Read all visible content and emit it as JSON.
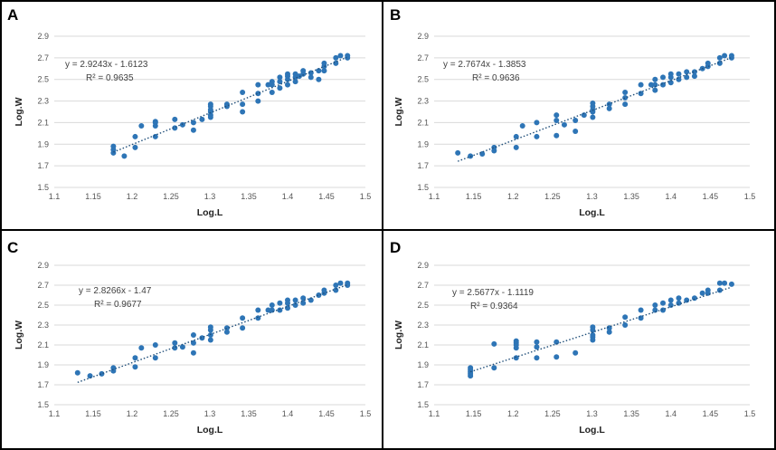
{
  "figure": {
    "panels": [
      "A",
      "B",
      "C",
      "D"
    ]
  },
  "chart_data": [
    {
      "panel": "A",
      "type": "scatter",
      "xlabel": "Log.L",
      "ylabel": "Log.W",
      "xlim": [
        1.1,
        1.5
      ],
      "ylim": [
        1.5,
        2.9
      ],
      "xticks": [
        "1.1",
        "1.15",
        "1.2",
        "1.25",
        "1.3",
        "1.35",
        "1.4",
        "1.45",
        "1.5"
      ],
      "yticks": [
        "1.5",
        "1.7",
        "1.9",
        "2.1",
        "2.3",
        "2.5",
        "2.7",
        "2.9"
      ],
      "grid": "horizontal",
      "equation": "y = 2.9243x - 1.6123",
      "r_squared": "R² = 0.9635",
      "trendline": {
        "slope": 2.9243,
        "intercept": -1.6123,
        "x_range": [
          1.176,
          1.476
        ]
      },
      "x": [
        1.176,
        1.176,
        1.176,
        1.19,
        1.204,
        1.204,
        1.23,
        1.23,
        1.23,
        1.255,
        1.255,
        1.279,
        1.279,
        1.301,
        1.301,
        1.301,
        1.301,
        1.301,
        1.301,
        1.322,
        1.322,
        1.342,
        1.342,
        1.342,
        1.362,
        1.362,
        1.362,
        1.375,
        1.38,
        1.38,
        1.38,
        1.39,
        1.39,
        1.39,
        1.4,
        1.4,
        1.4,
        1.4,
        1.41,
        1.41,
        1.41,
        1.415,
        1.42,
        1.42,
        1.43,
        1.43,
        1.44,
        1.44,
        1.447,
        1.447,
        1.447,
        1.462,
        1.462,
        1.468,
        1.477,
        1.477,
        1.23,
        1.265,
        1.212,
        1.29
      ],
      "y": [
        1.82,
        1.85,
        1.88,
        1.79,
        1.87,
        1.97,
        1.97,
        2.07,
        2.11,
        2.05,
        2.13,
        2.03,
        2.1,
        2.15,
        2.17,
        2.2,
        2.22,
        2.25,
        2.27,
        2.25,
        2.27,
        2.2,
        2.27,
        2.38,
        2.3,
        2.37,
        2.45,
        2.45,
        2.38,
        2.45,
        2.48,
        2.42,
        2.48,
        2.52,
        2.45,
        2.5,
        2.53,
        2.55,
        2.48,
        2.52,
        2.55,
        2.53,
        2.55,
        2.58,
        2.52,
        2.56,
        2.5,
        2.58,
        2.58,
        2.62,
        2.65,
        2.65,
        2.7,
        2.72,
        2.7,
        2.72,
        2.1,
        2.08,
        2.07,
        2.13
      ]
    },
    {
      "panel": "B",
      "type": "scatter",
      "xlabel": "Log.L",
      "ylabel": "Log.W",
      "xlim": [
        1.1,
        1.5
      ],
      "ylim": [
        1.5,
        2.9
      ],
      "xticks": [
        "1.1",
        "1.15",
        "1.2",
        "1.25",
        "1.3",
        "1.35",
        "1.4",
        "1.45",
        "1.5"
      ],
      "yticks": [
        "1.5",
        "1.7",
        "1.9",
        "2.1",
        "2.3",
        "2.5",
        "2.7",
        "2.9"
      ],
      "grid": "horizontal",
      "equation": "y = 2.7674x - 1.3853",
      "r_squared": "R² = 0.9636",
      "trendline": {
        "slope": 2.7674,
        "intercept": -1.3853,
        "x_range": [
          1.13,
          1.476
        ]
      },
      "x": [
        1.13,
        1.146,
        1.161,
        1.176,
        1.176,
        1.204,
        1.204,
        1.212,
        1.23,
        1.23,
        1.255,
        1.255,
        1.255,
        1.265,
        1.279,
        1.279,
        1.29,
        1.301,
        1.301,
        1.301,
        1.301,
        1.301,
        1.322,
        1.322,
        1.342,
        1.342,
        1.342,
        1.362,
        1.362,
        1.375,
        1.38,
        1.38,
        1.38,
        1.39,
        1.39,
        1.4,
        1.4,
        1.4,
        1.41,
        1.41,
        1.42,
        1.42,
        1.43,
        1.43,
        1.44,
        1.447,
        1.447,
        1.462,
        1.462,
        1.468,
        1.477,
        1.477
      ],
      "y": [
        1.82,
        1.79,
        1.81,
        1.84,
        1.87,
        1.87,
        1.97,
        2.07,
        1.97,
        2.1,
        1.98,
        2.12,
        2.17,
        2.08,
        2.02,
        2.12,
        2.17,
        2.15,
        2.2,
        2.22,
        2.25,
        2.28,
        2.23,
        2.27,
        2.27,
        2.33,
        2.38,
        2.37,
        2.45,
        2.45,
        2.4,
        2.45,
        2.5,
        2.45,
        2.52,
        2.47,
        2.52,
        2.55,
        2.5,
        2.55,
        2.52,
        2.57,
        2.53,
        2.57,
        2.6,
        2.62,
        2.65,
        2.65,
        2.7,
        2.72,
        2.7,
        2.72
      ]
    },
    {
      "panel": "C",
      "type": "scatter",
      "xlabel": "Log.L",
      "ylabel": "Log.W",
      "xlim": [
        1.1,
        1.5
      ],
      "ylim": [
        1.5,
        2.9
      ],
      "xticks": [
        "1.1",
        "1.15",
        "1.2",
        "1.25",
        "1.3",
        "1.35",
        "1.4",
        "1.45",
        "1.5"
      ],
      "yticks": [
        "1.5",
        "1.7",
        "1.9",
        "2.1",
        "2.3",
        "2.5",
        "2.7",
        "2.9"
      ],
      "grid": "horizontal",
      "equation": "y = 2.8266x - 1.47",
      "r_squared": "R² = 0.9677",
      "trendline": {
        "slope": 2.8266,
        "intercept": -1.47,
        "x_range": [
          1.13,
          1.476
        ]
      },
      "x": [
        1.13,
        1.146,
        1.161,
        1.176,
        1.176,
        1.204,
        1.204,
        1.212,
        1.23,
        1.23,
        1.255,
        1.255,
        1.265,
        1.279,
        1.279,
        1.279,
        1.29,
        1.301,
        1.301,
        1.301,
        1.301,
        1.322,
        1.322,
        1.342,
        1.342,
        1.362,
        1.362,
        1.375,
        1.38,
        1.38,
        1.39,
        1.39,
        1.4,
        1.4,
        1.4,
        1.41,
        1.41,
        1.42,
        1.42,
        1.43,
        1.44,
        1.447,
        1.447,
        1.462,
        1.462,
        1.468,
        1.477,
        1.477
      ],
      "y": [
        1.82,
        1.79,
        1.81,
        1.84,
        1.87,
        1.88,
        1.97,
        2.07,
        1.97,
        2.1,
        2.07,
        2.12,
        2.08,
        2.02,
        2.12,
        2.2,
        2.17,
        2.15,
        2.2,
        2.25,
        2.28,
        2.23,
        2.27,
        2.27,
        2.37,
        2.37,
        2.45,
        2.45,
        2.45,
        2.5,
        2.45,
        2.52,
        2.47,
        2.52,
        2.55,
        2.5,
        2.55,
        2.52,
        2.57,
        2.55,
        2.6,
        2.62,
        2.65,
        2.65,
        2.7,
        2.72,
        2.7,
        2.72
      ]
    },
    {
      "panel": "D",
      "type": "scatter",
      "xlabel": "Log.L",
      "ylabel": "Log.W",
      "xlim": [
        1.1,
        1.5
      ],
      "ylim": [
        1.5,
        2.9
      ],
      "xticks": [
        "1.1",
        "1.15",
        "1.2",
        "1.25",
        "1.3",
        "1.35",
        "1.4",
        "1.45",
        "1.5"
      ],
      "yticks": [
        "1.5",
        "1.7",
        "1.9",
        "2.1",
        "2.3",
        "2.5",
        "2.7",
        "2.9"
      ],
      "grid": "horizontal",
      "equation": "y = 2.5677x - 1.1119",
      "r_squared": "R² = 0.9364",
      "trendline": {
        "slope": 2.5677,
        "intercept": -1.1119,
        "x_range": [
          1.146,
          1.476
        ]
      },
      "x": [
        1.146,
        1.146,
        1.146,
        1.146,
        1.146,
        1.176,
        1.176,
        1.204,
        1.204,
        1.204,
        1.204,
        1.204,
        1.23,
        1.23,
        1.23,
        1.255,
        1.255,
        1.279,
        1.301,
        1.301,
        1.301,
        1.301,
        1.301,
        1.322,
        1.322,
        1.342,
        1.342,
        1.362,
        1.362,
        1.38,
        1.38,
        1.39,
        1.39,
        1.4,
        1.4,
        1.41,
        1.41,
        1.42,
        1.43,
        1.44,
        1.447,
        1.447,
        1.462,
        1.462,
        1.468,
        1.477
      ],
      "y": [
        1.79,
        1.81,
        1.83,
        1.85,
        1.87,
        1.87,
        2.11,
        1.97,
        2.07,
        2.1,
        2.12,
        2.14,
        1.97,
        2.08,
        2.13,
        1.98,
        2.13,
        2.02,
        2.15,
        2.18,
        2.2,
        2.25,
        2.28,
        2.23,
        2.27,
        2.3,
        2.38,
        2.37,
        2.45,
        2.45,
        2.5,
        2.45,
        2.52,
        2.5,
        2.55,
        2.52,
        2.57,
        2.55,
        2.57,
        2.62,
        2.62,
        2.65,
        2.65,
        2.72,
        2.72,
        2.71
      ]
    }
  ]
}
